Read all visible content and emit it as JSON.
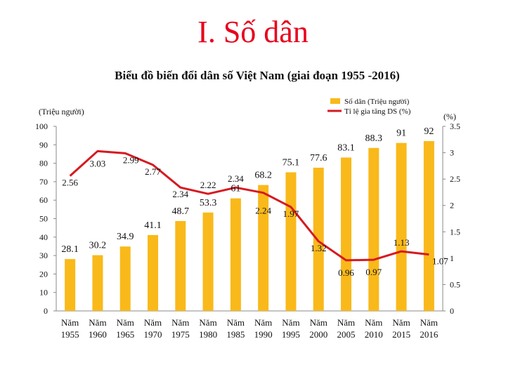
{
  "slide": {
    "title": "I. Số dân"
  },
  "chart_data": {
    "type": "bar",
    "title": "Biểu đồ biến đổi dân số Việt Nam (giai đoạn 1955 -2016)",
    "categories": [
      "Năm\n1955",
      "Năm\n1960",
      "Năm\n1965",
      "Năm\n1970",
      "Năm\n1975",
      "Năm\n1980",
      "Năm\n1985",
      "Năm\n1990",
      "Năm\n1995",
      "Năm\n2000",
      "Năm\n2005",
      "Năm\n2010",
      "Năm\n2015",
      "Năm\n2016"
    ],
    "ylabel": "(Triệu người)",
    "y2label": "(%)",
    "ylim": [
      0,
      100
    ],
    "y2lim": [
      0,
      3.5
    ],
    "yticks": [
      "0",
      "10",
      "20",
      "30",
      "40",
      "50",
      "60",
      "70",
      "80",
      "90",
      "100"
    ],
    "y2ticks": [
      "0",
      "0.5",
      "1",
      "1.5",
      "2",
      "2.5",
      "3",
      "3.5"
    ],
    "legend_position": "top-right",
    "grid": false,
    "colors": {
      "bar": "#f9b91a",
      "line": "#d71920",
      "title": "#e8001c"
    },
    "series": [
      {
        "name": "Số dân (Triệu người)",
        "type": "bar",
        "axis": "left",
        "values": [
          28.1,
          30.2,
          34.9,
          41.1,
          48.7,
          53.3,
          61,
          68.2,
          75.1,
          77.6,
          83.1,
          88.3,
          91,
          92
        ],
        "labels": [
          "28.1",
          "30.2",
          "34.9",
          "41.1",
          "48.7",
          "53.3",
          "61",
          "68.2",
          "75.1",
          "77.6",
          "83.1",
          "88.3",
          "91",
          "92"
        ]
      },
      {
        "name": "Tỉ lệ gia tăng DS (%)",
        "type": "line",
        "axis": "right",
        "values": [
          2.56,
          3.03,
          2.99,
          2.77,
          2.34,
          2.22,
          2.34,
          2.24,
          1.97,
          1.32,
          0.96,
          0.97,
          1.13,
          1.07
        ],
        "labels": [
          "2.56",
          "3.03",
          "2.99",
          "2.77",
          "2.34",
          "2.22",
          "2.34",
          "2.24",
          "1.97",
          "1.32",
          "0.96",
          "0.97",
          "1.13",
          "1.07"
        ]
      }
    ]
  }
}
